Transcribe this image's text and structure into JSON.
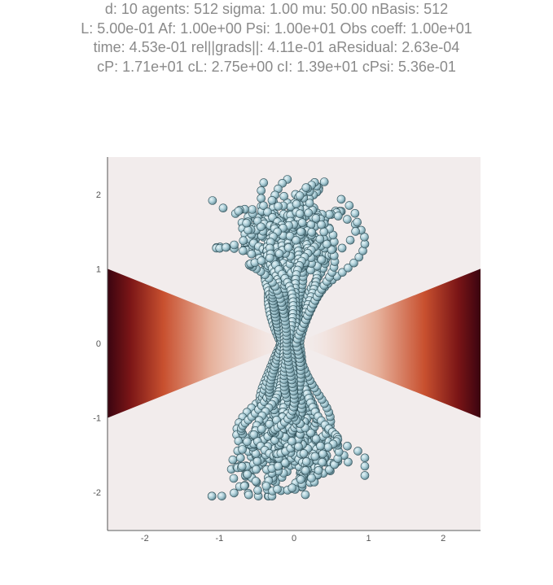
{
  "header": {
    "line1": "d: 10 agents: 512 sigma: 1.00 mu: 50.00 nBasis: 512",
    "line2": "L: 5.00e-01  Af: 1.00e+00 Psi: 1.00e+01 Obs coeff: 1.00e+01",
    "line3": "time: 4.53e-01 rel||grads||: 4.11e-01 aResidual: 2.63e-04",
    "line4": "cP: 1.71e+01 cL: 2.75e+00 cI: 1.39e+01 cPsi: 5.36e-01"
  },
  "chart_data": {
    "type": "scatter",
    "title": "",
    "xlabel": "",
    "ylabel": "",
    "xlim": [
      -2.5,
      2.5
    ],
    "ylim": [
      -2.5,
      2.5
    ],
    "xticks": [
      "-2",
      "-1",
      "0",
      "1",
      "2"
    ],
    "yticks": [
      "2",
      "1",
      "0",
      "-1",
      "-2"
    ],
    "grid": false,
    "background_colormap": [
      "#f2ecec",
      "#e6b09a",
      "#c8502f",
      "#7a1516",
      "#3a0410"
    ],
    "obstacle_field": "two cone-shaped regions opening left and right from the origin, darkest at the plot edges",
    "agents": 512,
    "marker_color": "#a9ccd6",
    "marker_edge": "#2e4d55",
    "trajectory_extent": {
      "x": [
        -1.1,
        0.95
      ],
      "y": [
        -2.05,
        2.2
      ]
    },
    "trajectory_waist": {
      "x": [
        -0.5,
        0.5
      ],
      "y": [
        -0.2,
        0.2
      ]
    }
  }
}
